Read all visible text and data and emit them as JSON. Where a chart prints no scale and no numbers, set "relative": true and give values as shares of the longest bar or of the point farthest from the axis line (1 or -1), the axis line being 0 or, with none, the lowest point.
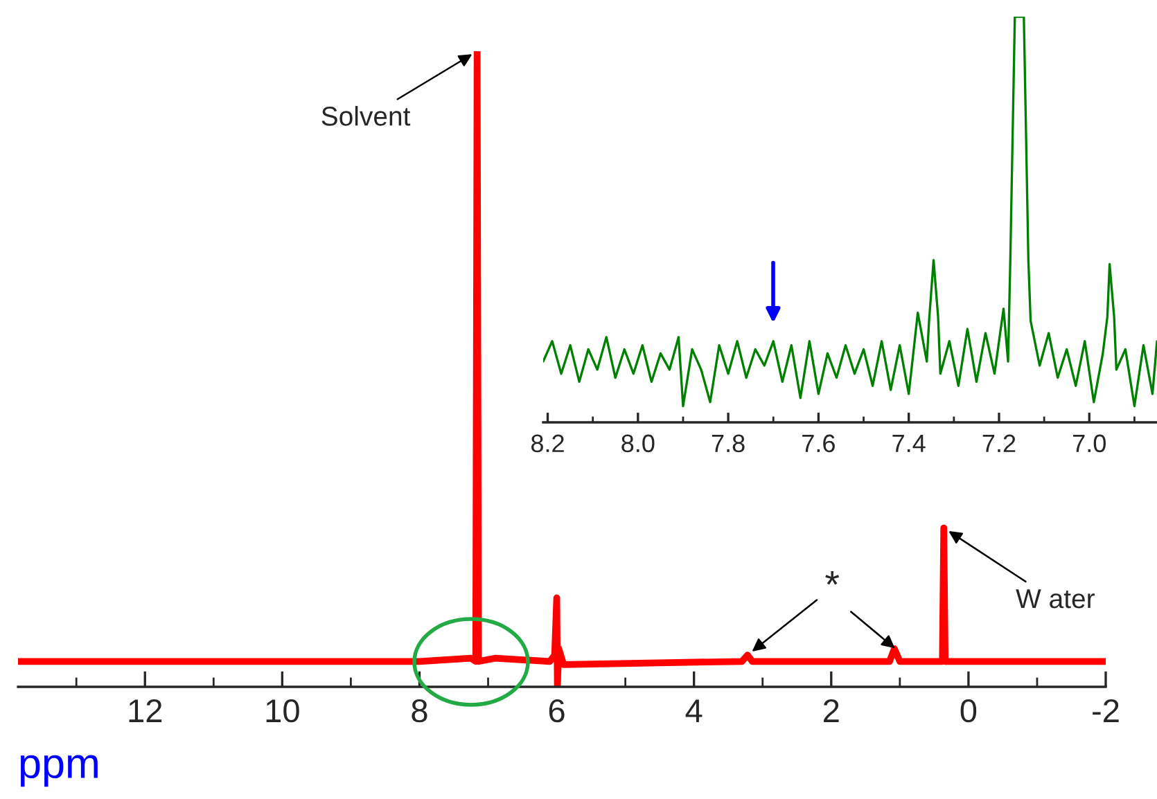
{
  "chart_data": [
    {
      "type": "line",
      "relative": true,
      "xlabel": "ppm",
      "tick_labels": "x",
      "xlim": [
        13.85,
        -2.0
      ],
      "xticks": [
        {
          "value": 12,
          "label": "12"
        },
        {
          "value": 10,
          "label": "10"
        },
        {
          "value": 8,
          "label": "8"
        },
        {
          "value": 6,
          "label": "6"
        },
        {
          "value": 4,
          "label": "4"
        },
        {
          "value": 2,
          "label": "2"
        },
        {
          "value": 0,
          "label": "0"
        },
        {
          "value": -2,
          "label": "-2"
        },
        {
          "value": 13,
          "label": null
        },
        {
          "value": 11,
          "label": null
        },
        {
          "value": 9,
          "label": null
        },
        {
          "value": 7,
          "label": null
        },
        {
          "value": 5,
          "label": null
        },
        {
          "value": 3,
          "label": null
        },
        {
          "value": 1,
          "label": null
        },
        {
          "value": -1,
          "label": null
        }
      ],
      "series": [
        {
          "color": "#ff0000",
          "x": [
            13.85,
            8.0,
            7.25,
            7.18,
            7.16,
            7.14,
            6.9,
            6.1,
            6.03,
            6.0,
            5.99,
            5.97,
            5.9,
            3.3,
            3.22,
            3.15,
            1.15,
            1.08,
            1.0,
            0.38,
            0.36,
            0.34,
            -2.0
          ],
          "values": [
            0.04,
            0.04,
            0.045,
            0.04,
            1,
            0.04,
            0.045,
            0.04,
            0.05,
            0.14,
            0,
            0.06,
            0.035,
            0.04,
            0.05,
            0.04,
            0.04,
            0.06,
            0.04,
            0.04,
            0.25,
            0.04,
            0.04
          ]
        }
      ],
      "annotations": [
        {
          "text": "Solvent",
          "x": 7.16,
          "y": 1
        },
        {
          "text": "W ater",
          "x": 0.36,
          "y": 0.25
        },
        {
          "text": "*",
          "x": 3.22,
          "y": 0.05
        }
      ]
    },
    {
      "type": "line",
      "relative": true,
      "tick_labels": "x",
      "xlim": [
        8.21,
        6.85
      ],
      "xticks": [
        {
          "value": 8.2,
          "label": "8.2"
        },
        {
          "value": 8.0,
          "label": "8.0"
        },
        {
          "value": 7.8,
          "label": "7.8"
        },
        {
          "value": 7.6,
          "label": "7.6"
        },
        {
          "value": 7.4,
          "label": "7.4"
        },
        {
          "value": 7.2,
          "label": "7.2"
        },
        {
          "value": 7.0,
          "label": "7.0"
        },
        {
          "value": 8.1,
          "label": null
        },
        {
          "value": 7.9,
          "label": null
        },
        {
          "value": 7.7,
          "label": null
        },
        {
          "value": 7.5,
          "label": null
        },
        {
          "value": 7.3,
          "label": null
        },
        {
          "value": 7.1,
          "label": null
        },
        {
          "value": 6.9,
          "label": null
        }
      ],
      "series": [
        {
          "color": "#008000",
          "x": [
            8.21,
            8.19,
            8.17,
            8.15,
            8.13,
            8.11,
            8.09,
            8.07,
            8.05,
            8.03,
            8.01,
            7.99,
            7.97,
            7.95,
            7.93,
            7.91,
            7.9,
            7.88,
            7.86,
            7.84,
            7.82,
            7.8,
            7.78,
            7.76,
            7.74,
            7.72,
            7.7,
            7.68,
            7.66,
            7.64,
            7.62,
            7.6,
            7.58,
            7.56,
            7.54,
            7.52,
            7.5,
            7.48,
            7.46,
            7.44,
            7.42,
            7.4,
            7.38,
            7.36,
            7.355,
            7.345,
            7.335,
            7.33,
            7.31,
            7.29,
            7.27,
            7.25,
            7.23,
            7.21,
            7.19,
            7.18,
            7.175,
            7.165,
            7.145,
            7.135,
            7.13,
            7.11,
            7.09,
            7.07,
            7.05,
            7.03,
            7.01,
            6.99,
            6.97,
            6.96,
            6.955,
            6.945,
            6.94,
            6.92,
            6.9,
            6.88,
            6.86,
            6.85
          ],
          "values": [
            0.15,
            0.2,
            0.12,
            0.19,
            0.1,
            0.18,
            0.13,
            0.21,
            0.11,
            0.18,
            0.12,
            0.19,
            0.1,
            0.17,
            0.13,
            0.21,
            0.04,
            0.18,
            0.13,
            0.05,
            0.19,
            0.12,
            0.2,
            0.11,
            0.18,
            0.14,
            0.2,
            0.1,
            0.19,
            0.06,
            0.2,
            0.07,
            0.17,
            0.11,
            0.19,
            0.12,
            0.18,
            0.09,
            0.2,
            0.08,
            0.19,
            0.07,
            0.27,
            0.15,
            0.25,
            0.4,
            0.26,
            0.12,
            0.2,
            0.09,
            0.23,
            0.1,
            0.22,
            0.12,
            0.28,
            0.15,
            0.4,
            1,
            1,
            0.4,
            0.25,
            0.14,
            0.22,
            0.11,
            0.18,
            0.09,
            0.2,
            0.05,
            0.17,
            0.26,
            0.39,
            0.26,
            0.13,
            0.18,
            0.04,
            0.19,
            0.07,
            0.2
          ]
        }
      ]
    }
  ]
}
